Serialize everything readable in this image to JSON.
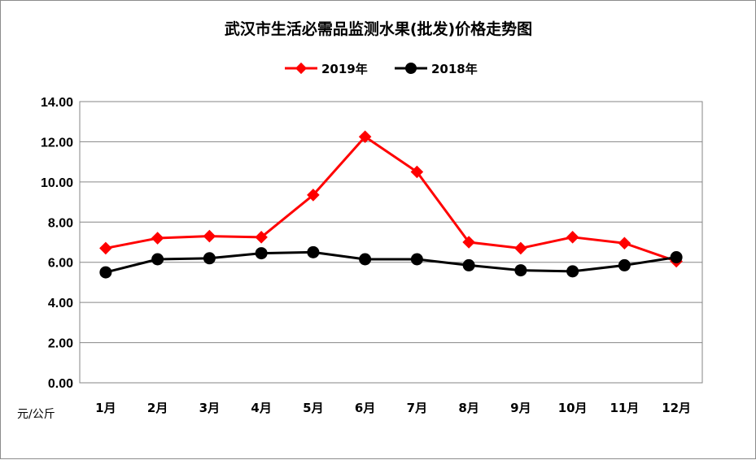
{
  "chart_data": {
    "type": "line",
    "title": "武汉市生活必需品监测水果(批发)价格走势图",
    "unit_label": "元/公斤",
    "categories": [
      "1月",
      "2月",
      "3月",
      "4月",
      "5月",
      "6月",
      "7月",
      "8月",
      "9月",
      "10月",
      "11月",
      "12月"
    ],
    "ylim": [
      0,
      14
    ],
    "yticks": [
      "0.00",
      "2.00",
      "4.00",
      "6.00",
      "8.00",
      "10.00",
      "12.00",
      "14.00"
    ],
    "grid": true,
    "legend_position": "top",
    "series": [
      {
        "name": "2019年",
        "color": "#ff0000",
        "marker": "diamond",
        "values": [
          6.7,
          7.2,
          7.3,
          7.25,
          9.35,
          12.25,
          10.5,
          7.0,
          6.7,
          7.25,
          6.95,
          6.05
        ]
      },
      {
        "name": "2018年",
        "color": "#000000",
        "marker": "circle",
        "values": [
          5.5,
          6.15,
          6.2,
          6.45,
          6.5,
          6.15,
          6.15,
          5.85,
          5.6,
          5.55,
          5.85,
          6.25
        ]
      }
    ]
  }
}
